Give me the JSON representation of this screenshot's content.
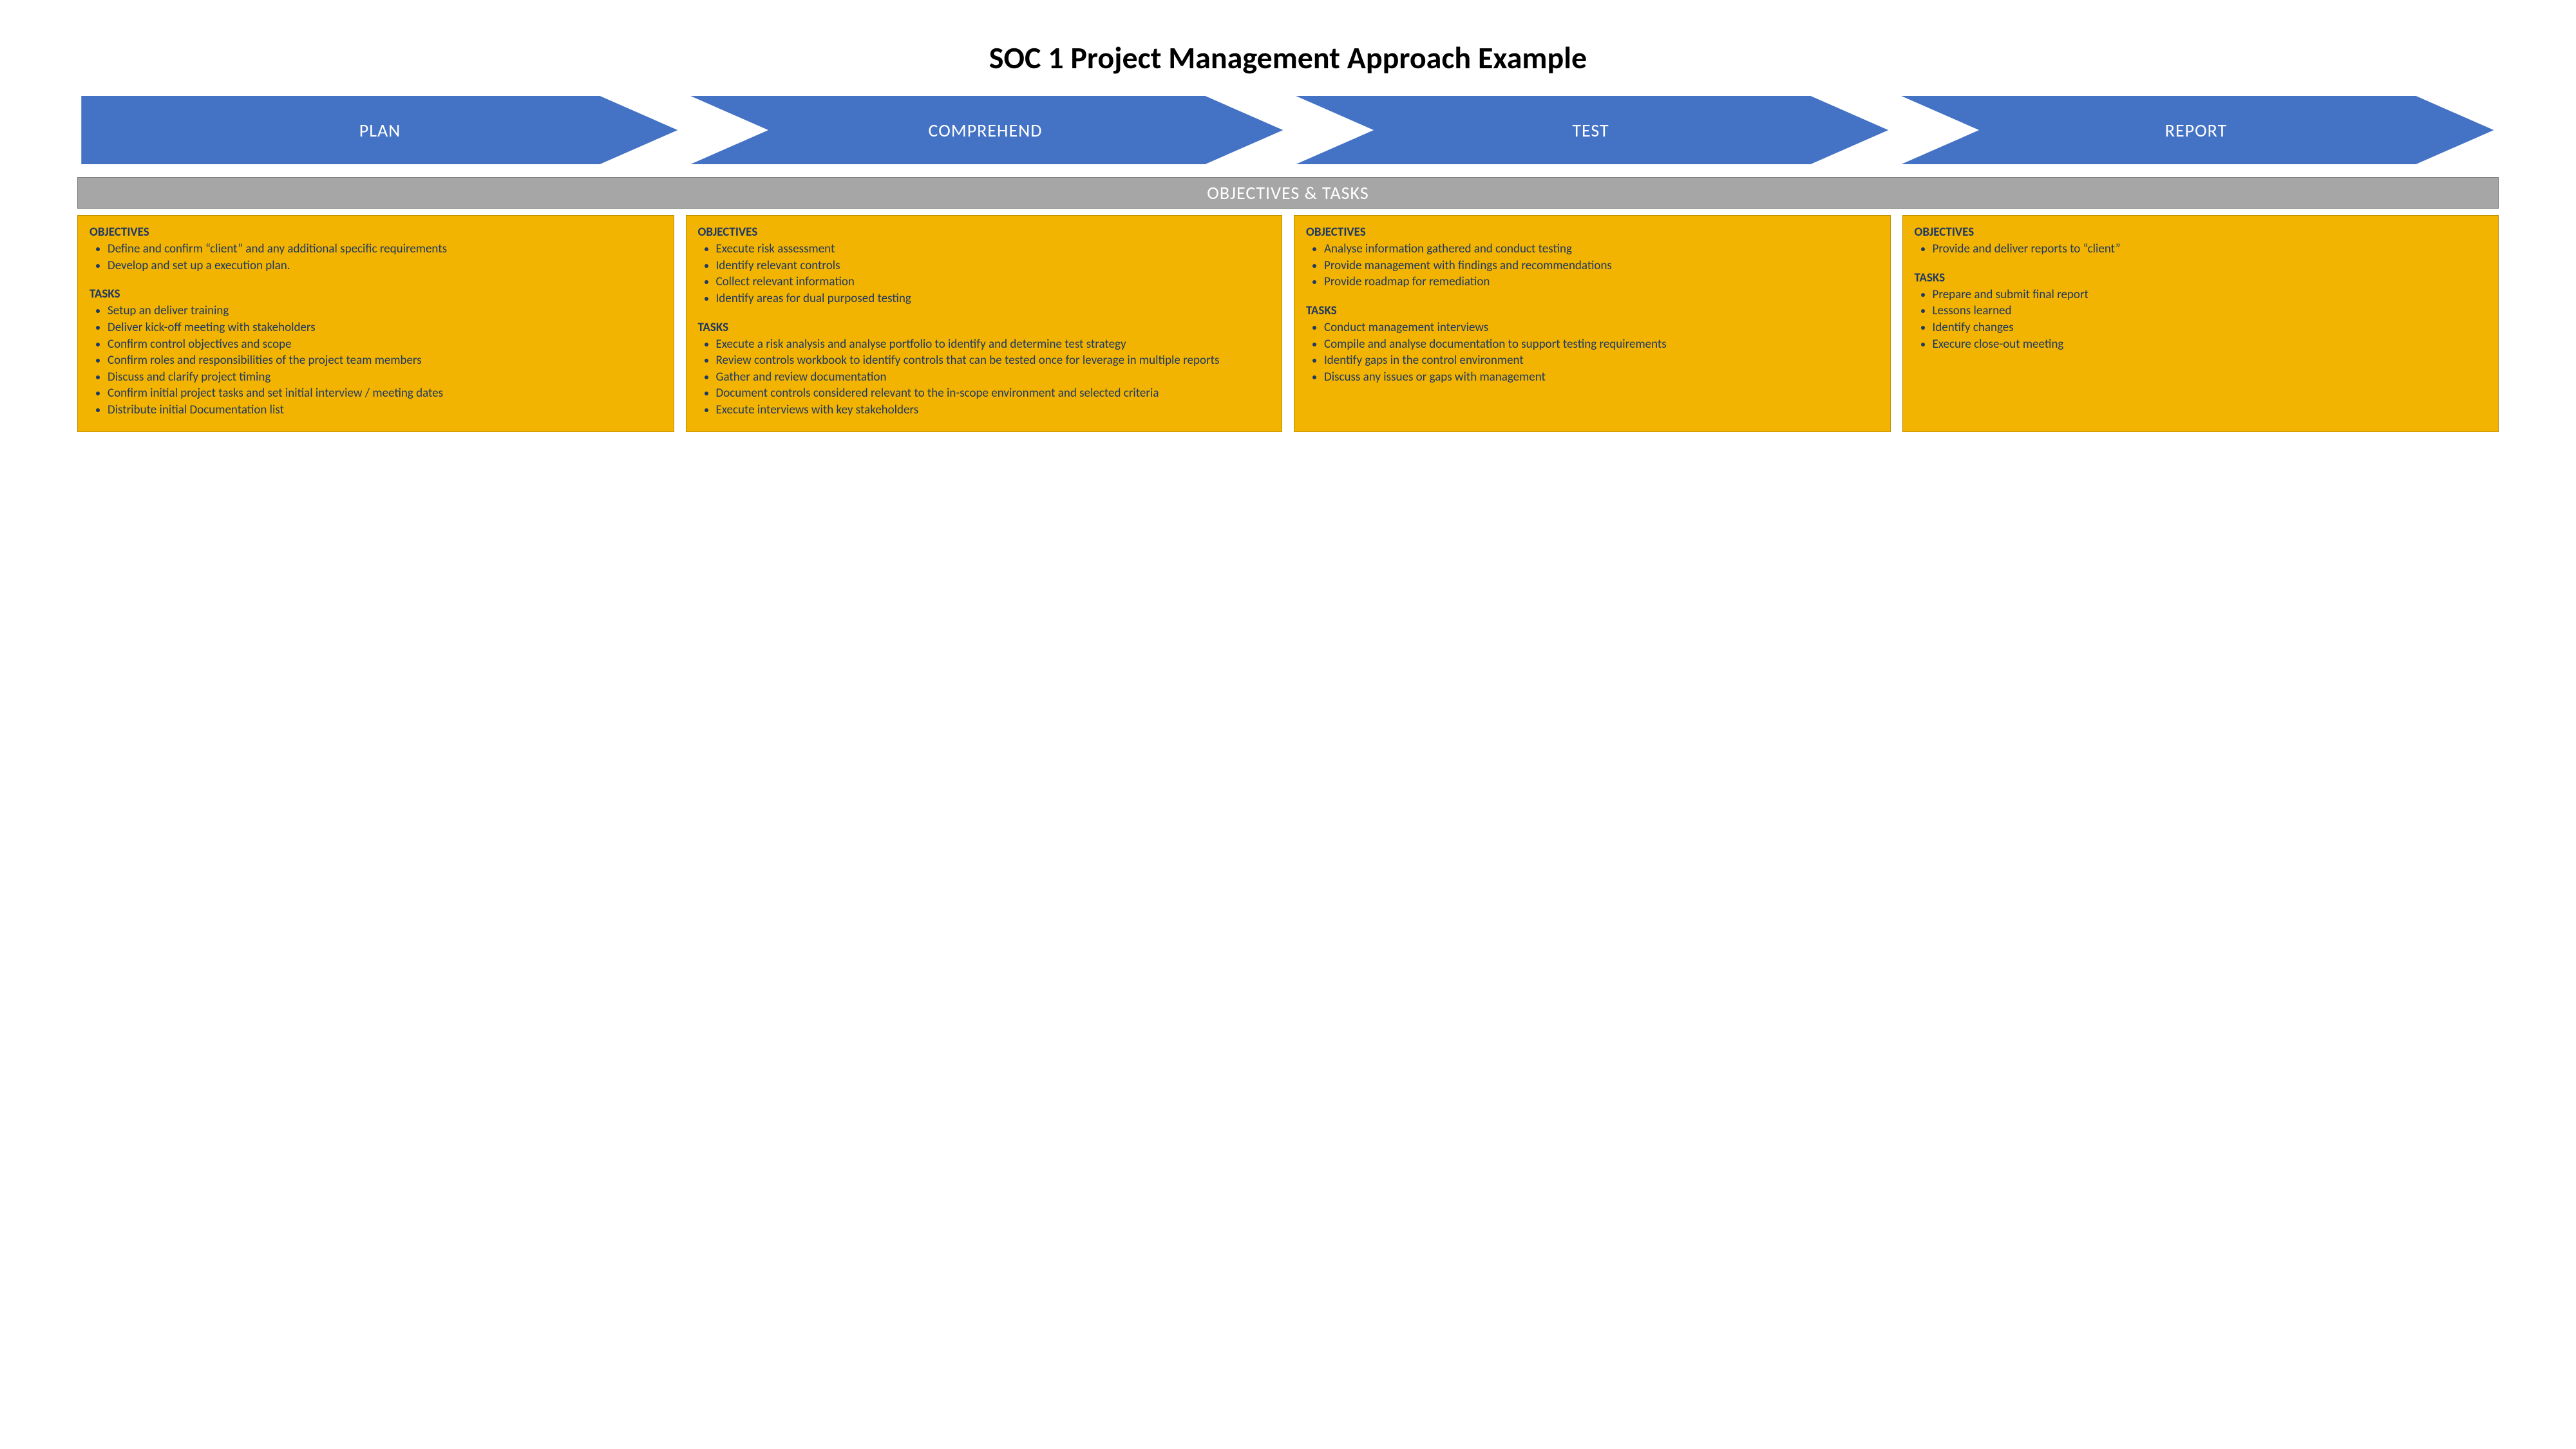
{
  "title": "SOC 1 Project Management Approach Example",
  "chevron_color": "#4472c4",
  "chevron_stroke": "#ffffff",
  "section_bar_bg": "#a6a6a6",
  "card_bg": "#f2b400",
  "card_border": "#bf8f00",
  "text_color": "#1f3864",
  "section_bar_label": "OBJECTIVES & TASKS",
  "objectives_label": "OBJECTIVES",
  "tasks_label": "TASKS",
  "phases": [
    {
      "name": "PLAN",
      "objectives": [
        "Define and confirm “client” and any additional specific requirements",
        "Develop and set up a execution plan."
      ],
      "tasks": [
        "Setup an deliver training",
        "Deliver kick-off meeting with stakeholders",
        "Confirm control objectives and scope",
        "Confirm roles and responsibilities of the project team members",
        "Discuss and clarify project timing",
        "Confirm initial project tasks and set initial interview / meeting dates",
        "Distribute initial Documentation list"
      ]
    },
    {
      "name": "COMPREHEND",
      "objectives": [
        "Execute risk assessment",
        "Identify relevant controls",
        "Collect relevant information",
        "Identify areas for dual purposed testing"
      ],
      "tasks": [
        "Execute a risk analysis and analyse portfolio to identify and determine test strategy",
        "Review controls workbook to identify controls that can be tested once for leverage in multiple reports",
        "Gather and review documentation",
        "Document controls considered relevant to the in-scope environment and selected criteria",
        "Execute interviews with key stakeholders"
      ]
    },
    {
      "name": "TEST",
      "objectives": [
        "Analyse information gathered and conduct testing",
        "Provide management with findings and recommendations",
        "Provide roadmap for remediation"
      ],
      "tasks": [
        "Conduct management interviews",
        "Compile and analyse documentation to support testing requirements",
        "Identify gaps in the control environment",
        "Discuss any issues or gaps with management"
      ]
    },
    {
      "name": "REPORT",
      "objectives": [
        "Provide and deliver reports to “client”"
      ],
      "tasks": [
        "Prepare and submit final report",
        "Lessons learned",
        "Identify changes",
        " Execure close-out meeting"
      ]
    }
  ]
}
